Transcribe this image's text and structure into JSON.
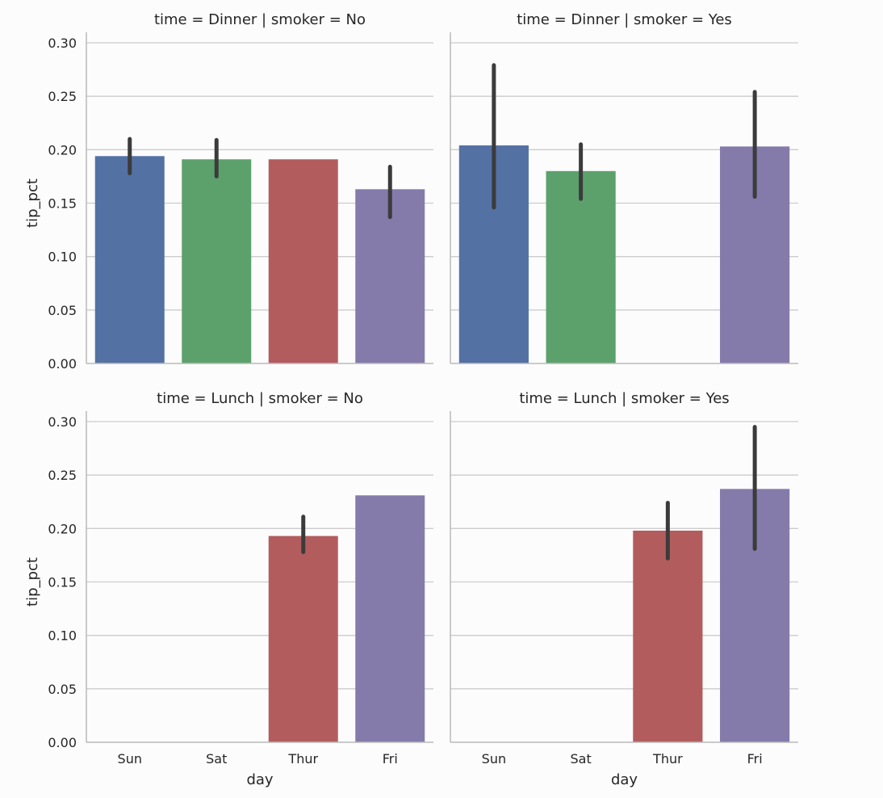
{
  "chart_data": {
    "type": "bar",
    "layout": "facet-grid 2x2",
    "categories": [
      "Sun",
      "Sat",
      "Thur",
      "Fri"
    ],
    "colors": [
      "#5471a4",
      "#5ca16c",
      "#b35c5e",
      "#847bab"
    ],
    "xlabel": "day",
    "ylabel": "tip_pct",
    "ylim": [
      0,
      0.3
    ],
    "yticks": [
      "0.00",
      "0.05",
      "0.10",
      "0.15",
      "0.20",
      "0.25",
      "0.30"
    ],
    "grid": true,
    "panels": [
      {
        "title": "time = Dinner | smoker = No",
        "values": [
          0.194,
          0.191,
          0.191,
          0.163
        ],
        "ci": [
          [
            0.178,
            0.21
          ],
          [
            0.175,
            0.209
          ],
          null,
          [
            0.137,
            0.184
          ]
        ]
      },
      {
        "title": "time = Dinner | smoker = Yes",
        "values": [
          0.204,
          0.18,
          null,
          0.203
        ],
        "ci": [
          [
            0.146,
            0.279
          ],
          [
            0.154,
            0.205
          ],
          null,
          [
            0.156,
            0.254
          ]
        ]
      },
      {
        "title": "time = Lunch | smoker = No",
        "values": [
          null,
          null,
          0.193,
          0.231
        ],
        "ci": [
          null,
          null,
          [
            0.178,
            0.211
          ],
          null
        ]
      },
      {
        "title": "time = Lunch | smoker = Yes",
        "values": [
          null,
          null,
          0.198,
          0.237
        ],
        "ci": [
          null,
          null,
          [
            0.172,
            0.224
          ],
          [
            0.181,
            0.295
          ]
        ]
      }
    ]
  }
}
